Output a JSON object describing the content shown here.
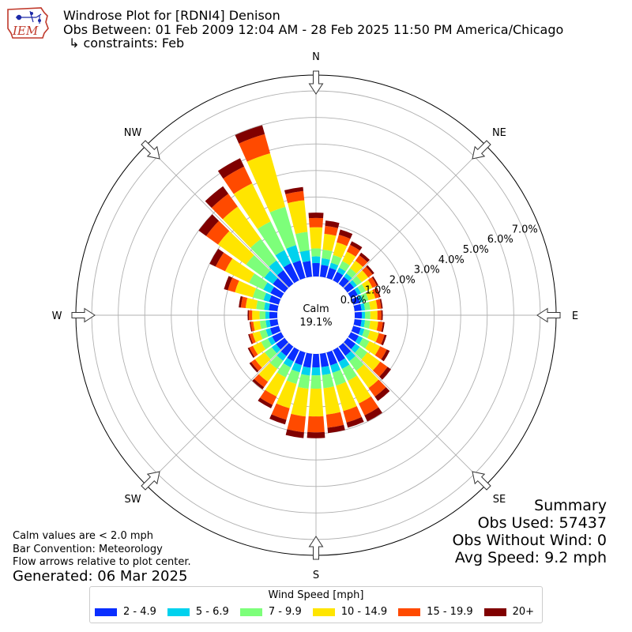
{
  "header": {
    "title": "Windrose Plot for [RDNI4] Denison",
    "subtitle": "Obs Between: 01 Feb 2009 12:04 AM - 28 Feb 2025 11:50 PM America/Chicago",
    "constraints": "↳ constraints: Feb",
    "logo_text": "IEM"
  },
  "chart_data": {
    "type": "windrose",
    "bar_convention": "Meteorology",
    "directions_deg": [
      0,
      10,
      20,
      30,
      40,
      50,
      60,
      70,
      80,
      90,
      100,
      110,
      120,
      130,
      140,
      150,
      160,
      170,
      180,
      190,
      200,
      210,
      220,
      230,
      240,
      250,
      260,
      270,
      280,
      290,
      300,
      310,
      320,
      330,
      340,
      350
    ],
    "compass_labels": [
      {
        "label": "N",
        "deg": 0
      },
      {
        "label": "NE",
        "deg": 45
      },
      {
        "label": "E",
        "deg": 90
      },
      {
        "label": "SE",
        "deg": 135
      },
      {
        "label": "S",
        "deg": 180
      },
      {
        "label": "SW",
        "deg": 225
      },
      {
        "label": "W",
        "deg": 270
      },
      {
        "label": "NW",
        "deg": 315
      }
    ],
    "radial_ticks": [
      "0.0%",
      "1.0%",
      "2.0%",
      "3.0%",
      "4.0%",
      "5.0%",
      "6.0%",
      "7.0%"
    ],
    "radial_max_pct": 7.6,
    "calm_label": "Calm",
    "calm_pct": "19.1%",
    "series": [
      {
        "name": "2 - 4.9",
        "color": "#0a2eff",
        "values": [
          0.51,
          0.45,
          0.4,
          0.36,
          0.33,
          0.31,
          0.29,
          0.27,
          0.27,
          0.27,
          0.27,
          0.3,
          0.33,
          0.38,
          0.43,
          0.5,
          0.51,
          0.51,
          0.51,
          0.53,
          0.5,
          0.48,
          0.44,
          0.4,
          0.38,
          0.34,
          0.3,
          0.3,
          0.33,
          0.38,
          0.45,
          0.55,
          0.64,
          0.72,
          0.69,
          0.6
        ]
      },
      {
        "name": "5 - 6.9",
        "color": "#00d2ee",
        "values": [
          0.25,
          0.25,
          0.2,
          0.18,
          0.16,
          0.14,
          0.14,
          0.13,
          0.13,
          0.12,
          0.13,
          0.14,
          0.17,
          0.2,
          0.25,
          0.29,
          0.29,
          0.3,
          0.3,
          0.3,
          0.28,
          0.25,
          0.22,
          0.2,
          0.18,
          0.17,
          0.15,
          0.15,
          0.18,
          0.22,
          0.3,
          0.4,
          0.45,
          0.55,
          0.6,
          0.4
        ]
      },
      {
        "name": "7 - 9.9",
        "color": "#7dff7a",
        "values": [
          0.3,
          0.33,
          0.3,
          0.27,
          0.24,
          0.22,
          0.2,
          0.2,
          0.2,
          0.2,
          0.2,
          0.22,
          0.28,
          0.35,
          0.45,
          0.5,
          0.5,
          0.5,
          0.5,
          0.5,
          0.46,
          0.42,
          0.38,
          0.33,
          0.28,
          0.24,
          0.22,
          0.22,
          0.3,
          0.42,
          0.6,
          0.85,
          1.0,
          1.2,
          1.5,
          0.7
        ]
      },
      {
        "name": "10 - 14.9",
        "color": "#ffe500",
        "values": [
          0.8,
          0.6,
          0.5,
          0.4,
          0.35,
          0.3,
          0.28,
          0.27,
          0.27,
          0.27,
          0.3,
          0.35,
          0.45,
          0.6,
          0.8,
          0.95,
          1.0,
          1.0,
          1.05,
          1.05,
          0.95,
          0.8,
          0.6,
          0.45,
          0.35,
          0.28,
          0.25,
          0.28,
          0.4,
          0.7,
          1.0,
          1.3,
          1.5,
          1.6,
          2.1,
          1.2
        ]
      },
      {
        "name": "15 - 19.9",
        "color": "#ff4a00",
        "values": [
          0.35,
          0.3,
          0.3,
          0.28,
          0.25,
          0.2,
          0.18,
          0.15,
          0.15,
          0.15,
          0.18,
          0.22,
          0.28,
          0.34,
          0.4,
          0.5,
          0.45,
          0.5,
          0.6,
          0.6,
          0.45,
          0.35,
          0.25,
          0.18,
          0.15,
          0.12,
          0.1,
          0.12,
          0.18,
          0.28,
          0.4,
          0.55,
          0.6,
          0.7,
          0.75,
          0.35
        ]
      },
      {
        "name": "20+",
        "color": "#800000",
        "values": [
          0.2,
          0.2,
          0.2,
          0.15,
          0.12,
          0.08,
          0.06,
          0.05,
          0.05,
          0.05,
          0.06,
          0.08,
          0.12,
          0.16,
          0.2,
          0.25,
          0.2,
          0.2,
          0.22,
          0.22,
          0.18,
          0.14,
          0.1,
          0.08,
          0.06,
          0.05,
          0.04,
          0.05,
          0.08,
          0.15,
          0.25,
          0.35,
          0.35,
          0.35,
          0.35,
          0.15
        ]
      }
    ]
  },
  "legend": {
    "title": "Wind Speed [mph]",
    "entries": [
      "2 - 4.9",
      "5 - 6.9",
      "7 - 9.9",
      "10 - 14.9",
      "15 - 19.9",
      "20+"
    ]
  },
  "notes": {
    "calm": "Calm values are < 2.0 mph",
    "convention": "Bar Convention: Meteorology",
    "flow": "Flow arrows relative to plot center.",
    "generated": "Generated: 06 Mar 2025"
  },
  "summary": {
    "title": "Summary",
    "obs_used": "Obs Used: 57437",
    "obs_without_wind": "Obs Without Wind: 0",
    "avg_speed": "Avg Speed: 9.2 mph"
  }
}
